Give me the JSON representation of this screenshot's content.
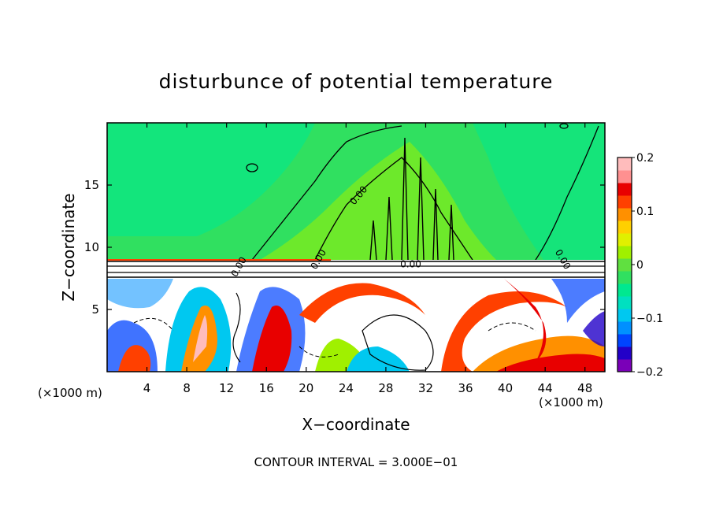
{
  "chart_data": {
    "type": "heatmap",
    "title": "disturbunce of potential temperature",
    "xlabel": "X−coordinate",
    "ylabel": "Z−coordinate",
    "x_unit": "(×1000 m)",
    "z_unit": "(×1000 m)",
    "xlim": [
      0,
      50
    ],
    "ylim": [
      0,
      20
    ],
    "x_ticks": [
      4,
      8,
      12,
      16,
      20,
      24,
      28,
      32,
      36,
      40,
      44,
      48
    ],
    "x_tick_labels": [
      "4",
      "8",
      "12",
      "16",
      "20",
      "24",
      "28",
      "32",
      "36",
      "40",
      "44",
      "48"
    ],
    "y_ticks": [
      5,
      10,
      15
    ],
    "y_tick_labels": [
      "5",
      "10",
      "15"
    ],
    "colorbar": {
      "range": [
        -0.2,
        0.2
      ],
      "tick_values": [
        0.2,
        0.1,
        0,
        -0.1,
        -0.2
      ],
      "tick_labels": [
        "0.2",
        "0.1",
        "0",
        "−0.1",
        "−0.2"
      ],
      "colors": [
        "#7a00b8",
        "#2200c8",
        "#0044ff",
        "#0090ff",
        "#00c8f0",
        "#00e0c0",
        "#00e890",
        "#30e060",
        "#60e040",
        "#a0f000",
        "#e0f000",
        "#ffd000",
        "#ff9000",
        "#ff4000",
        "#e80000",
        "#ff9090",
        "#ffbcbc"
      ]
    },
    "contour_interval_label": "CONTOUR INTERVAL = 3.000E−01",
    "contour_labels": [
      "0.00",
      "0.00",
      "0.00",
      "0.00",
      "0.00"
    ],
    "grid": false
  }
}
